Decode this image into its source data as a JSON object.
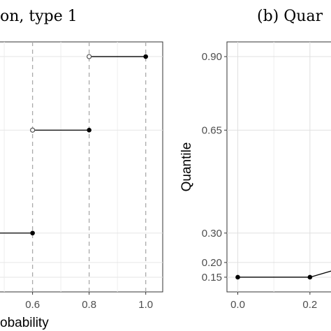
{
  "chart_data": [
    {
      "type": "line",
      "subtype": "step",
      "title": "on, type 1",
      "xlabel": "obability",
      "ylabel": "",
      "xlim": [
        0.48,
        1.06
      ],
      "ylim": [
        0.1,
        0.95
      ],
      "x_ticks": [
        0.6,
        0.8,
        1.0
      ],
      "x_tick_labels": [
        "0.6",
        "0.8",
        "1.0"
      ],
      "vertical_dashed_lines_at": [
        0.6,
        0.8,
        1.0
      ],
      "grid": true,
      "segments": [
        {
          "x_start": 0.4,
          "x_end": 0.6,
          "y": 0.3,
          "open_start": true,
          "closed_end": true
        },
        {
          "x_start": 0.6,
          "x_end": 0.8,
          "y": 0.65,
          "open_start": true,
          "closed_end": true
        },
        {
          "x_start": 0.8,
          "x_end": 1.0,
          "y": 0.9,
          "open_start": true,
          "closed_end": true
        }
      ]
    },
    {
      "type": "line",
      "title": "(b) Quar",
      "xlabel": "",
      "ylabel": "Quantile",
      "xlim": [
        -0.03,
        0.27
      ],
      "ylim": [
        0.1,
        0.95
      ],
      "x_ticks": [
        0.0,
        0.2
      ],
      "x_tick_labels": [
        "0.0",
        "0.2"
      ],
      "y_ticks": [
        0.15,
        0.2,
        0.3,
        0.65,
        0.9
      ],
      "y_tick_labels": [
        "0.15",
        "0.20",
        "0.30",
        "0.65",
        "0.90"
      ],
      "grid": true,
      "x": [
        0.0,
        0.2,
        0.27
      ],
      "y": [
        0.15,
        0.15,
        0.175
      ]
    }
  ]
}
